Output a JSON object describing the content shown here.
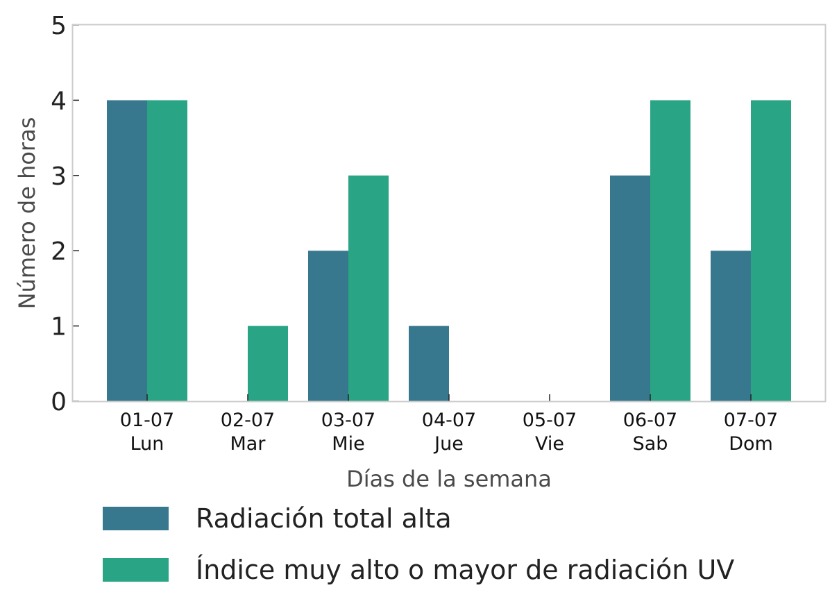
{
  "chart_data": {
    "type": "bar",
    "categories": [
      [
        "01-07",
        "Lun"
      ],
      [
        "02-07",
        "Mar"
      ],
      [
        "03-07",
        "Mie"
      ],
      [
        "04-07",
        "Jue"
      ],
      [
        "05-07",
        "Vie"
      ],
      [
        "06-07",
        "Sab"
      ],
      [
        "07-07",
        "Dom"
      ]
    ],
    "series": [
      {
        "name": "Radiación total alta",
        "values": [
          4,
          0,
          2,
          1,
          0,
          3,
          2
        ],
        "color": "#38788f"
      },
      {
        "name": "Índice muy alto o mayor de radiación UV",
        "values": [
          4,
          1,
          3,
          0,
          0,
          4,
          4
        ],
        "color": "#29a585"
      }
    ],
    "xlabel": "Días de la semana",
    "ylabel": "Número de horas",
    "ylim": [
      0,
      5
    ],
    "yticks": [
      0,
      1,
      2,
      3,
      4,
      5
    ],
    "grid": false,
    "legend_position": "bottom"
  }
}
